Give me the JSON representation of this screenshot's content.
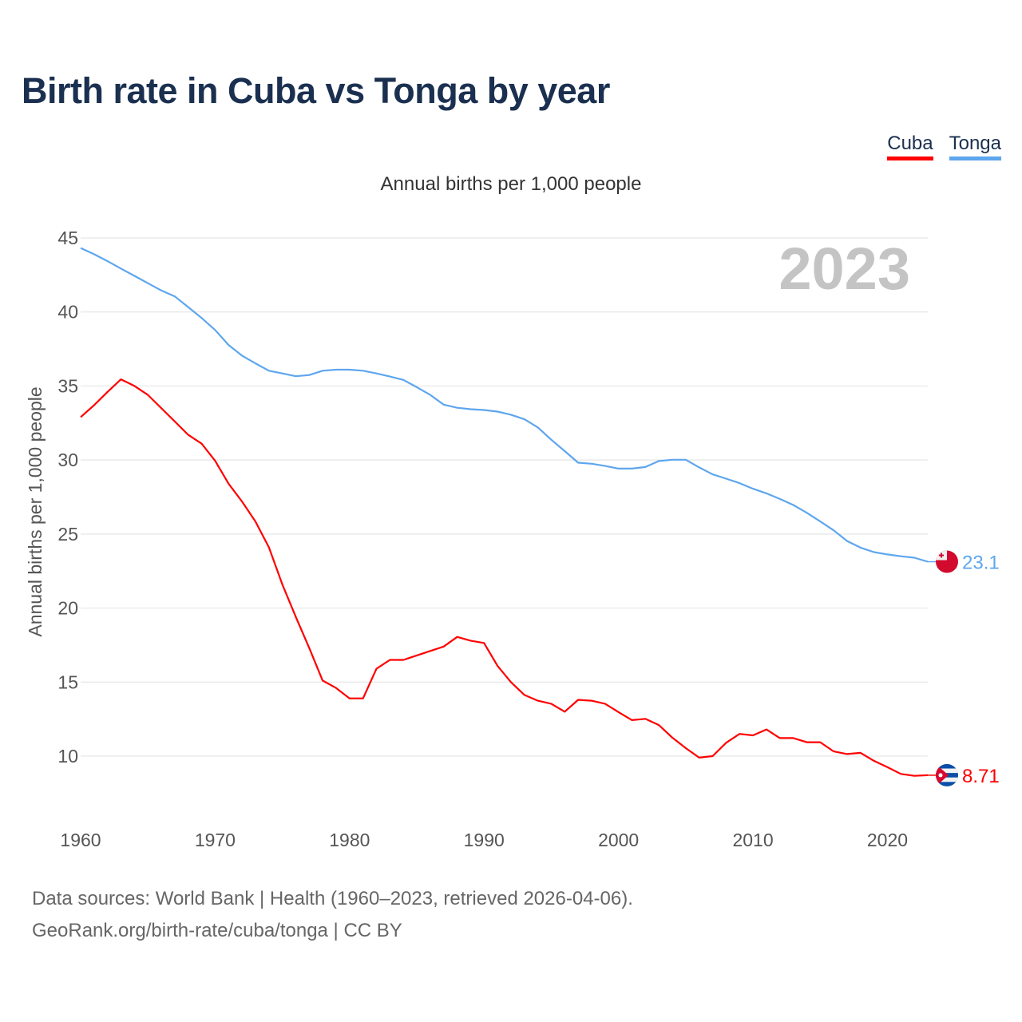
{
  "chart_data": {
    "type": "line",
    "title": "Birth rate in Cuba vs Tonga by year",
    "subtitle": "Annual births per 1,000 people",
    "ylabel": "Annual births per 1,000 people",
    "xlabel": "",
    "watermark_year": "2023",
    "xlim": [
      1960,
      2023
    ],
    "ylim": [
      10,
      45
    ],
    "yticks": [
      10,
      15,
      20,
      25,
      30,
      35,
      40,
      45
    ],
    "xticks": [
      1960,
      1970,
      1980,
      1990,
      2000,
      2010,
      2020
    ],
    "grid": true,
    "legend_position": "top-right",
    "x_start": 1960,
    "series": [
      {
        "name": "Cuba",
        "color": "#ff0000",
        "end_label": "8.71",
        "flag": "cuba-flag",
        "values": [
          32.9,
          33.7,
          34.6,
          35.45,
          35.0,
          34.4,
          33.5,
          32.6,
          31.7,
          31.1,
          29.95,
          28.4,
          27.2,
          25.85,
          24.1,
          21.6,
          19.4,
          17.3,
          15.1,
          14.6,
          13.9,
          13.9,
          15.9,
          16.5,
          16.5,
          16.8,
          17.1,
          17.4,
          18.05,
          17.8,
          17.64,
          16.1,
          15.0,
          14.13,
          13.74,
          13.54,
          13.0,
          13.8,
          13.74,
          13.54,
          12.97,
          12.43,
          12.52,
          12.1,
          11.25,
          10.54,
          9.9,
          10.0,
          10.9,
          11.5,
          11.4,
          11.8,
          11.22,
          11.22,
          10.94,
          10.94,
          10.32,
          10.14,
          10.22,
          9.68,
          9.25,
          8.8,
          8.67,
          8.71
        ]
      },
      {
        "name": "Tonga",
        "color": "#5ea6ee",
        "end_label": "23.1",
        "flag": "tonga-flag",
        "values": [
          44.32,
          43.9,
          43.43,
          42.93,
          42.44,
          41.94,
          41.45,
          41.05,
          40.33,
          39.59,
          38.78,
          37.77,
          37.05,
          36.53,
          36.03,
          35.85,
          35.66,
          35.74,
          36.03,
          36.1,
          36.1,
          36.03,
          35.85,
          35.64,
          35.41,
          34.92,
          34.4,
          33.74,
          33.53,
          33.43,
          33.38,
          33.27,
          33.06,
          32.75,
          32.2,
          31.37,
          30.6,
          29.82,
          29.75,
          29.6,
          29.42,
          29.42,
          29.53,
          29.93,
          30.02,
          30.02,
          29.5,
          29.03,
          28.74,
          28.44,
          28.06,
          27.75,
          27.37,
          26.96,
          26.44,
          25.85,
          25.25,
          24.53,
          24.08,
          23.78,
          23.62,
          23.5,
          23.4,
          23.13
        ]
      }
    ]
  },
  "footer": {
    "line1": "Data sources: World Bank | Health (1960–2023, retrieved 2026-04-06).",
    "line2": "GeoRank.org/birth-rate/cuba/tonga | CC BY"
  }
}
